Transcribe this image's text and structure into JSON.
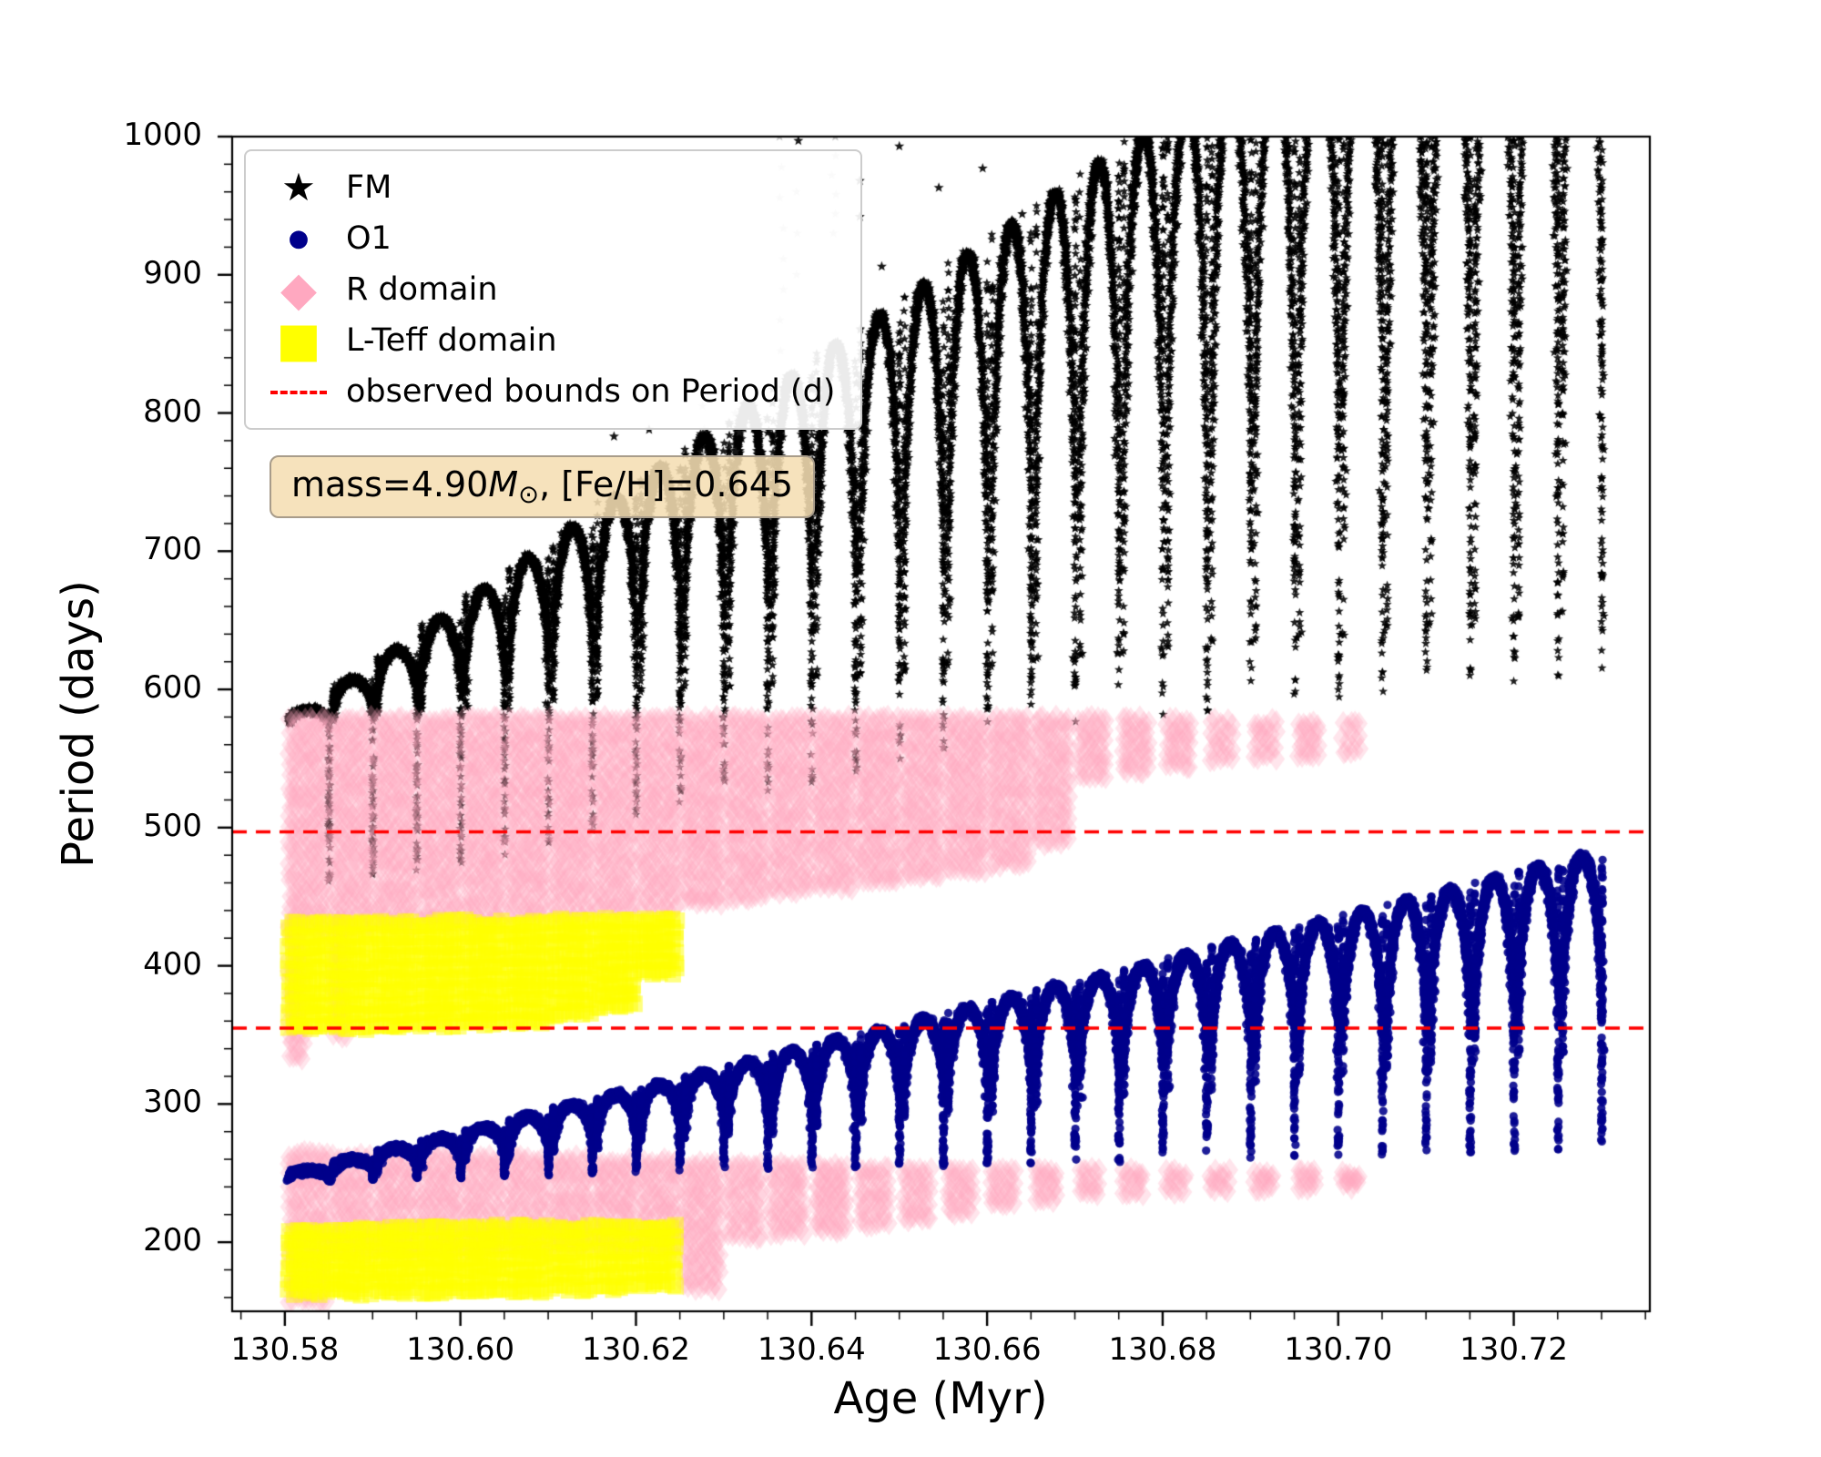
{
  "chart_data": {
    "type": "scatter",
    "title": "",
    "xlabel": "Age (Myr)",
    "ylabel": "Period (days)",
    "xlim": [
      130.574,
      130.7355
    ],
    "ylim": [
      150,
      1000
    ],
    "grid": false,
    "legend_position": "upper left",
    "xticks": [
      130.58,
      130.6,
      130.62,
      130.64,
      130.66,
      130.68,
      130.7,
      130.72
    ],
    "xtick_labels": [
      "130.58",
      "130.60",
      "130.62",
      "130.64",
      "130.66",
      "130.68",
      "130.70",
      "130.72"
    ],
    "xminor_step": 0.005,
    "yticks": [
      200,
      300,
      400,
      500,
      600,
      700,
      800,
      900,
      1000
    ],
    "ytick_labels": [
      "200",
      "300",
      "400",
      "500",
      "600",
      "700",
      "800",
      "900",
      "1000"
    ],
    "yminor_step": 20,
    "hlines": {
      "label": "observed bounds on Period (d)",
      "values": [
        497,
        355
      ],
      "color": "#ff0000",
      "style": "dashed"
    },
    "legend": {
      "items": [
        {
          "label": "FM",
          "marker": "star",
          "color": "#000000"
        },
        {
          "label": "O1",
          "marker": "circle",
          "color": "#00008b"
        },
        {
          "label": "R domain",
          "marker": "diamond",
          "color": "#ffa8c0"
        },
        {
          "label": "L-Teff domain",
          "marker": "square",
          "color": "#ffff00"
        },
        {
          "label": "observed bounds on Period (d)",
          "marker": "dashed-line",
          "color": "#ff0000"
        }
      ]
    },
    "annotation": {
      "text": "mass=4.90M⊙, [Fe/H]=0.645",
      "p1": "mass=4.90",
      "m_symbol": "M",
      "sun_symbol": "⊙",
      "p2": ", [Fe/H]=0.645",
      "bg_color": "#f5deb3"
    },
    "series": [
      {
        "name": "FM",
        "marker": "star",
        "color": "#000000",
        "arch_width": 0.0046,
        "arches": [
          [
            130.5805,
            575,
            585,
            455
          ],
          [
            130.5855,
            578,
            607,
            462
          ],
          [
            130.5905,
            581,
            629,
            468
          ],
          [
            130.5955,
            583,
            651,
            474
          ],
          [
            130.6005,
            586,
            673,
            480
          ],
          [
            130.6055,
            589,
            695,
            487
          ],
          [
            130.6105,
            592,
            717,
            493
          ],
          [
            130.6155,
            595,
            739,
            500
          ],
          [
            130.6205,
            597,
            761,
            508
          ],
          [
            130.6255,
            600,
            783,
            516
          ],
          [
            130.6305,
            603,
            805,
            524
          ],
          [
            130.6355,
            606,
            827,
            532
          ],
          [
            130.6405,
            609,
            849,
            540
          ],
          [
            130.6455,
            611,
            871,
            548
          ],
          [
            130.6505,
            614,
            893,
            556
          ],
          [
            130.6555,
            617,
            915,
            560
          ],
          [
            130.6605,
            620,
            937,
            565
          ],
          [
            130.6655,
            623,
            959,
            570
          ],
          [
            130.6705,
            625,
            981,
            575
          ],
          [
            130.6755,
            628,
            1003,
            578
          ],
          [
            130.6805,
            631,
            1025,
            580
          ],
          [
            130.6855,
            634,
            1047,
            584
          ],
          [
            130.6905,
            637,
            1069,
            588
          ],
          [
            130.6955,
            639,
            1091,
            592
          ],
          [
            130.7005,
            642,
            1113,
            596
          ],
          [
            130.7055,
            645,
            1135,
            600
          ],
          [
            130.7105,
            648,
            1157,
            602
          ],
          [
            130.7155,
            650,
            1179,
            604
          ],
          [
            130.7205,
            653,
            1201,
            606
          ],
          [
            130.7255,
            656,
            1223,
            608
          ]
        ]
      },
      {
        "name": "O1",
        "marker": "circle",
        "color": "#00008b",
        "arch_width": 0.0046,
        "arches": [
          [
            130.5805,
            246,
            252,
            244
          ],
          [
            130.5855,
            249,
            260,
            245
          ],
          [
            130.5905,
            252,
            268,
            246
          ],
          [
            130.5955,
            256,
            275,
            246
          ],
          [
            130.6005,
            259,
            283,
            247
          ],
          [
            130.6055,
            262,
            291,
            248
          ],
          [
            130.6105,
            265,
            299,
            249
          ],
          [
            130.6155,
            268,
            307,
            250
          ],
          [
            130.6205,
            272,
            314,
            250
          ],
          [
            130.6255,
            275,
            322,
            251
          ],
          [
            130.6305,
            278,
            330,
            252
          ],
          [
            130.6355,
            281,
            338,
            253
          ],
          [
            130.6405,
            284,
            346,
            254
          ],
          [
            130.6455,
            288,
            353,
            254
          ],
          [
            130.6505,
            291,
            361,
            255
          ],
          [
            130.6555,
            294,
            369,
            256
          ],
          [
            130.6605,
            297,
            377,
            257
          ],
          [
            130.6655,
            300,
            385,
            258
          ],
          [
            130.6705,
            304,
            392,
            258
          ],
          [
            130.6755,
            307,
            400,
            259
          ],
          [
            130.6805,
            310,
            408,
            260
          ],
          [
            130.6855,
            313,
            416,
            261
          ],
          [
            130.6905,
            316,
            424,
            262
          ],
          [
            130.6955,
            320,
            431,
            262
          ],
          [
            130.7005,
            323,
            439,
            263
          ],
          [
            130.7055,
            326,
            447,
            264
          ],
          [
            130.7105,
            329,
            455,
            265
          ],
          [
            130.7155,
            332,
            463,
            266
          ],
          [
            130.7205,
            336,
            471,
            266
          ],
          [
            130.7255,
            339,
            479,
            267
          ]
        ]
      }
    ],
    "domains": [
      {
        "name": "R domain",
        "marker": "diamond",
        "color": "#ffa8c0",
        "alpha": 0.3,
        "size": 13,
        "clusters": [
          [
            130.5805,
            0.0016,
            335,
            430
          ],
          [
            130.5855,
            0.0014,
            350,
            430
          ],
          [
            130.5805,
            0.0042,
            428,
            578
          ],
          [
            130.5855,
            0.0042,
            428,
            578
          ],
          [
            130.5905,
            0.0042,
            430,
            578
          ],
          [
            130.5955,
            0.0042,
            432,
            578
          ],
          [
            130.6005,
            0.0042,
            434,
            578
          ],
          [
            130.6055,
            0.0042,
            436,
            578
          ],
          [
            130.6105,
            0.0042,
            438,
            578
          ],
          [
            130.6155,
            0.0042,
            440,
            578
          ],
          [
            130.6205,
            0.0042,
            442,
            578
          ],
          [
            130.6255,
            0.0042,
            446,
            578
          ],
          [
            130.6305,
            0.0042,
            450,
            578
          ],
          [
            130.6355,
            0.0042,
            455,
            578
          ],
          [
            130.6405,
            0.0042,
            458,
            578
          ],
          [
            130.6455,
            0.0042,
            462,
            578
          ],
          [
            130.6505,
            0.0042,
            466,
            578
          ],
          [
            130.6555,
            0.0042,
            470,
            578
          ],
          [
            130.6605,
            0.0042,
            474,
            578
          ],
          [
            130.6655,
            0.0038,
            490,
            578
          ],
          [
            130.6705,
            0.003,
            538,
            578
          ],
          [
            130.6755,
            0.0028,
            542,
            578
          ],
          [
            130.6805,
            0.0026,
            546,
            577
          ],
          [
            130.6855,
            0.0024,
            550,
            576
          ],
          [
            130.6905,
            0.0024,
            552,
            576
          ],
          [
            130.6955,
            0.0022,
            554,
            575
          ],
          [
            130.7005,
            0.002,
            556,
            574
          ],
          [
            130.5805,
            0.0042,
            158,
            264
          ],
          [
            130.5855,
            0.0042,
            192,
            262
          ],
          [
            130.5905,
            0.0042,
            193,
            262
          ],
          [
            130.5955,
            0.0042,
            194,
            262
          ],
          [
            130.6005,
            0.0042,
            195,
            260
          ],
          [
            130.6055,
            0.0042,
            196,
            260
          ],
          [
            130.6105,
            0.0042,
            197,
            260
          ],
          [
            130.6155,
            0.0042,
            198,
            258
          ],
          [
            130.6205,
            0.0042,
            196,
            258
          ],
          [
            130.6255,
            0.004,
            168,
            256
          ],
          [
            130.6305,
            0.0038,
            205,
            256
          ],
          [
            130.6355,
            0.0036,
            208,
            255
          ],
          [
            130.6405,
            0.0034,
            210,
            254
          ],
          [
            130.6455,
            0.0032,
            214,
            253
          ],
          [
            130.6505,
            0.003,
            218,
            252
          ],
          [
            130.6555,
            0.0028,
            222,
            252
          ],
          [
            130.6605,
            0.0026,
            228,
            252
          ],
          [
            130.6655,
            0.0024,
            232,
            252
          ],
          [
            130.6705,
            0.0022,
            235,
            251
          ],
          [
            130.6755,
            0.0022,
            237,
            251
          ],
          [
            130.6805,
            0.002,
            238,
            250
          ],
          [
            130.6855,
            0.002,
            239,
            250
          ],
          [
            130.6905,
            0.002,
            240,
            250
          ],
          [
            130.6955,
            0.0018,
            240,
            250
          ],
          [
            130.7005,
            0.0018,
            241,
            249
          ]
        ]
      },
      {
        "name": "L-Teff domain",
        "marker": "square",
        "color": "#ffff00",
        "alpha": 0.5,
        "size": 9,
        "clusters": [
          [
            130.5805,
            0.0042,
            356,
            430
          ],
          [
            130.5855,
            0.0042,
            356,
            430
          ],
          [
            130.5905,
            0.0042,
            357,
            430
          ],
          [
            130.5955,
            0.0042,
            358,
            431
          ],
          [
            130.6005,
            0.0042,
            359,
            431
          ],
          [
            130.6055,
            0.0042,
            360,
            431
          ],
          [
            130.6105,
            0.0042,
            366,
            432
          ],
          [
            130.6155,
            0.0042,
            372,
            432
          ],
          [
            130.6205,
            0.004,
            396,
            433
          ],
          [
            130.5805,
            0.0042,
            164,
            208
          ],
          [
            130.5855,
            0.0042,
            164,
            208
          ],
          [
            130.5905,
            0.0042,
            165,
            209
          ],
          [
            130.5955,
            0.0042,
            165,
            209
          ],
          [
            130.6005,
            0.0042,
            166,
            210
          ],
          [
            130.6055,
            0.0042,
            166,
            210
          ],
          [
            130.6105,
            0.0042,
            167,
            210
          ],
          [
            130.6155,
            0.0042,
            168,
            211
          ],
          [
            130.6205,
            0.004,
            170,
            211
          ]
        ]
      }
    ],
    "lone_stars": [
      [
        130.6115,
        713
      ],
      [
        130.6175,
        783
      ],
      [
        130.6215,
        788
      ],
      [
        130.6385,
        997
      ],
      [
        130.6455,
        968
      ],
      [
        130.6455,
        942
      ],
      [
        130.65,
        993
      ],
      [
        130.6545,
        963
      ],
      [
        130.648,
        906
      ],
      [
        130.6595,
        977
      ],
      [
        130.664,
        944
      ]
    ],
    "faded_star_columns": [
      [
        130.6275,
        755,
        805,
        4
      ],
      [
        130.6315,
        758,
        800,
        4
      ],
      [
        130.6365,
        845,
        1000,
        8
      ],
      [
        130.6385,
        900,
        960,
        3
      ],
      [
        130.6425,
        930,
        1000,
        6
      ]
    ]
  }
}
